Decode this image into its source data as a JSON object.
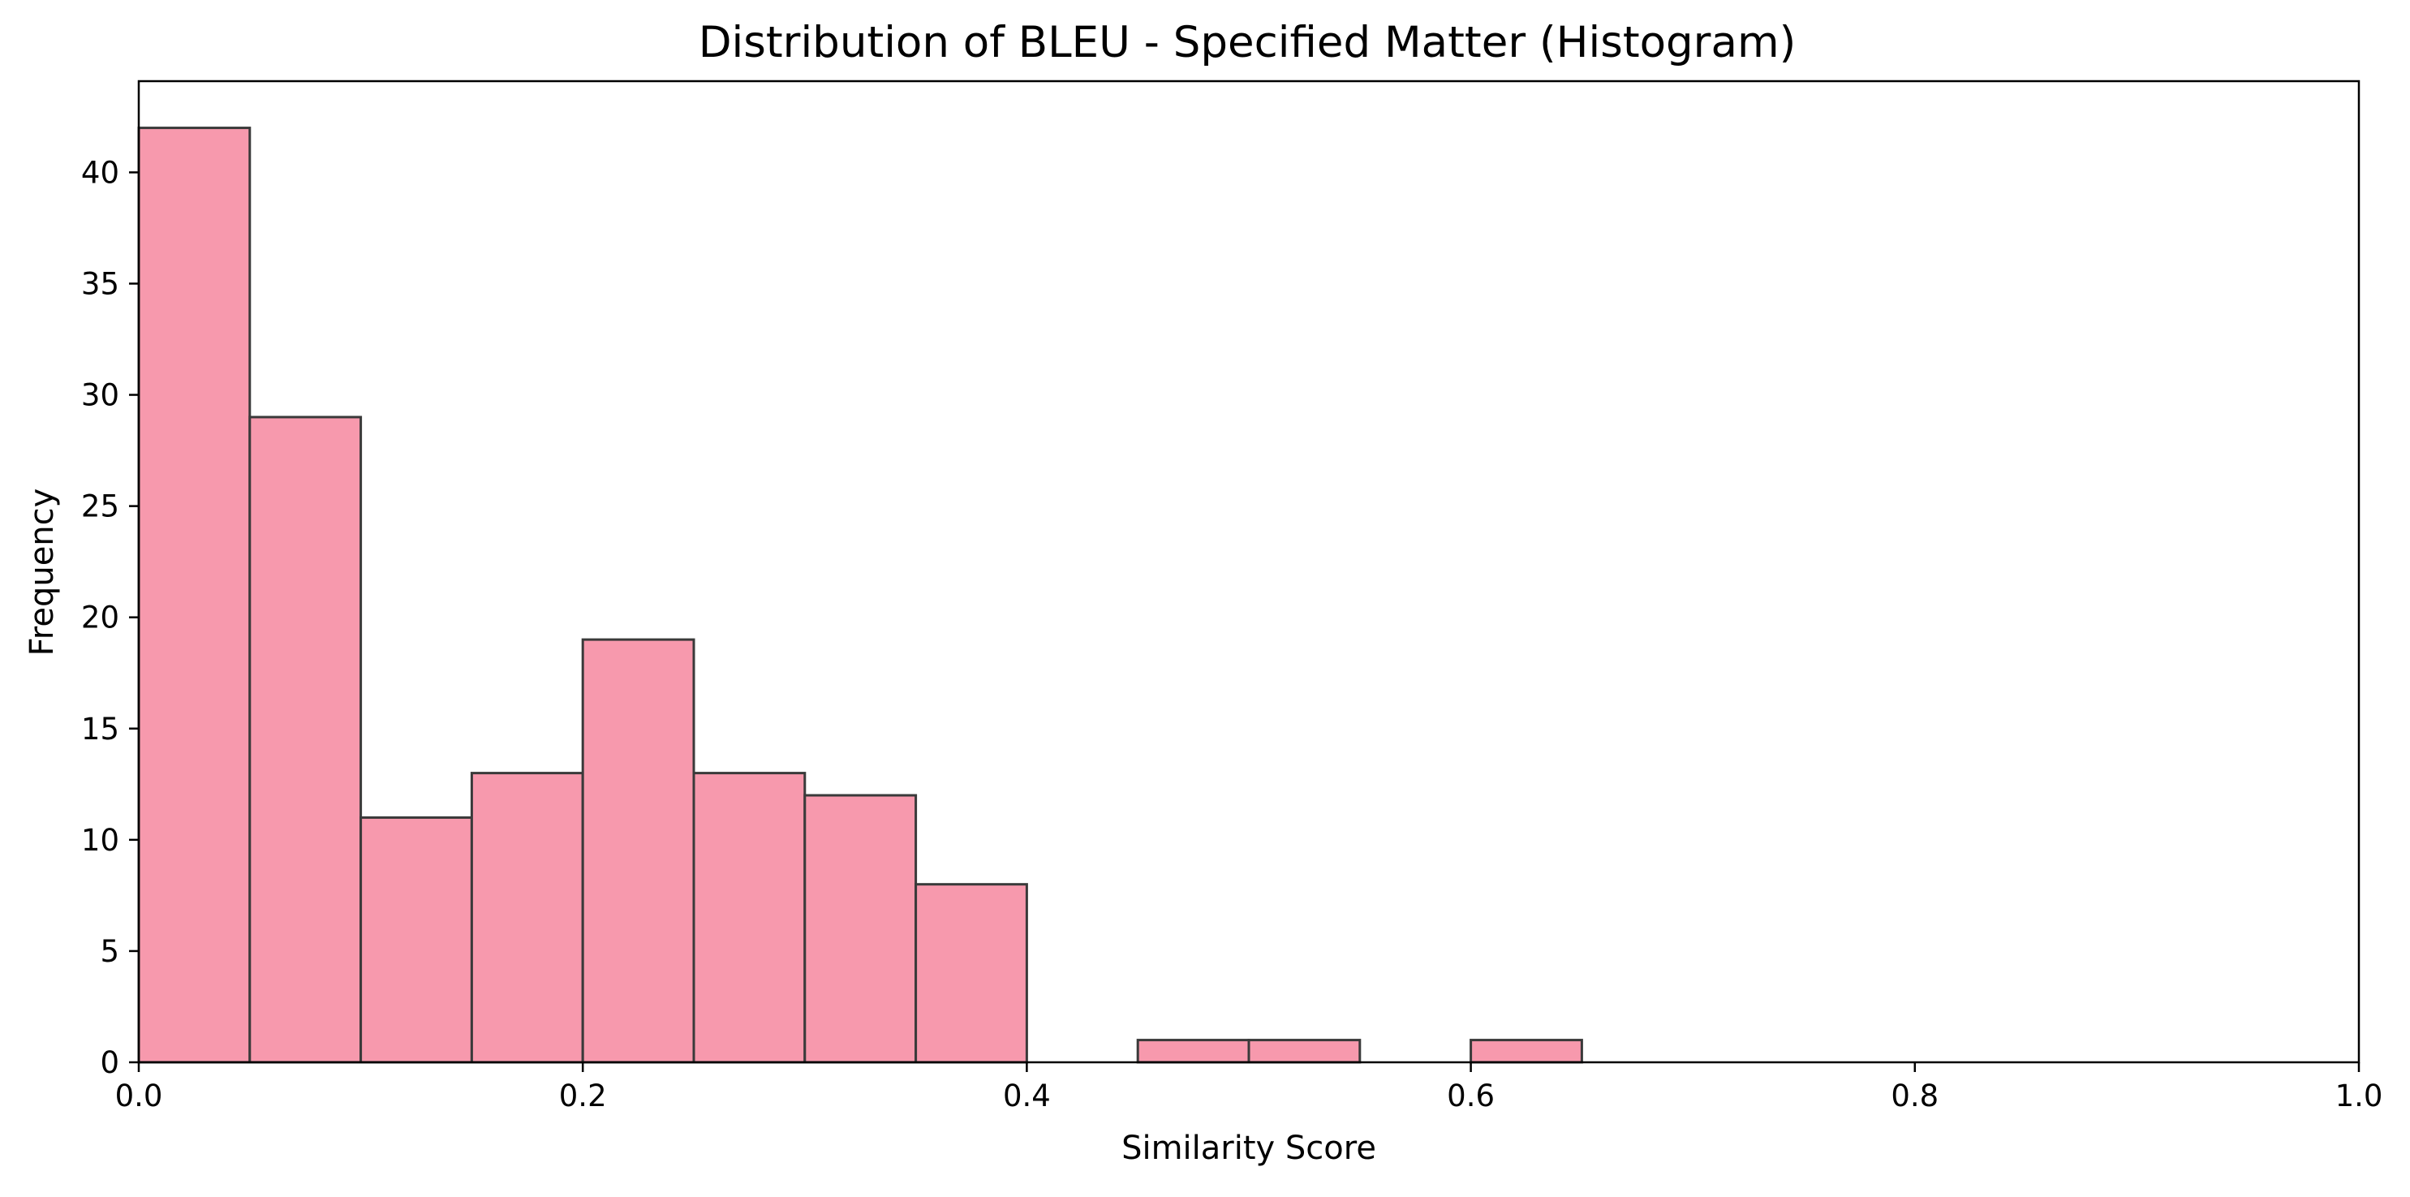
{
  "chart_data": {
    "type": "bar",
    "title": "Distribution of BLEU - Specified Matter (Histogram)",
    "xlabel": "Similarity Score",
    "ylabel": "Frequency",
    "xlim": [
      0.0,
      1.0
    ],
    "ylim": [
      0,
      44.1
    ],
    "bin_width": 0.05,
    "bins": [
      {
        "start": 0.0,
        "end": 0.05,
        "count": 42
      },
      {
        "start": 0.05,
        "end": 0.1,
        "count": 29
      },
      {
        "start": 0.1,
        "end": 0.15,
        "count": 11
      },
      {
        "start": 0.15,
        "end": 0.2,
        "count": 13
      },
      {
        "start": 0.2,
        "end": 0.25,
        "count": 19
      },
      {
        "start": 0.25,
        "end": 0.3,
        "count": 13
      },
      {
        "start": 0.3,
        "end": 0.35,
        "count": 12
      },
      {
        "start": 0.35,
        "end": 0.4,
        "count": 8
      },
      {
        "start": 0.4,
        "end": 0.45,
        "count": 0
      },
      {
        "start": 0.45,
        "end": 0.5,
        "count": 1
      },
      {
        "start": 0.5,
        "end": 0.55,
        "count": 1
      },
      {
        "start": 0.55,
        "end": 0.6,
        "count": 0
      },
      {
        "start": 0.6,
        "end": 0.65,
        "count": 1
      }
    ],
    "xticks": [
      "0.0",
      "0.2",
      "0.4",
      "0.6",
      "0.8",
      "1.0"
    ],
    "yticks": [
      "0",
      "5",
      "10",
      "15",
      "20",
      "25",
      "30",
      "35",
      "40"
    ],
    "grid": false,
    "bar_color": "#f799ad",
    "edge_color": "#3a3a3a"
  }
}
